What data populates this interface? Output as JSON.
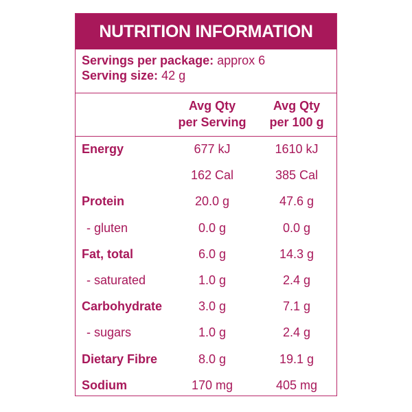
{
  "panel": {
    "title": "NUTRITION INFORMATION",
    "servings_label": "Servings per package:",
    "servings_value": "approx 6",
    "size_label": "Serving size:",
    "size_value": "42 g",
    "col1_line1": "Avg Qty",
    "col1_line2": "per Serving",
    "col2_line1": "Avg Qty",
    "col2_line2": "per 100 g",
    "rows": [
      {
        "name": "Energy",
        "per_serving": "677 kJ",
        "per_100g": "1610 kJ",
        "style": "bold"
      },
      {
        "name": "",
        "per_serving": "162 Cal",
        "per_100g": "385 Cal",
        "style": "bold"
      },
      {
        "name": "Protein",
        "per_serving": "20.0 g",
        "per_100g": "47.6 g",
        "style": "bold"
      },
      {
        "name": "- gluten",
        "per_serving": "0.0 g",
        "per_100g": "0.0 g",
        "style": "sub"
      },
      {
        "name": "Fat, total",
        "per_serving": "6.0 g",
        "per_100g": "14.3 g",
        "style": "bold"
      },
      {
        "name": "- saturated",
        "per_serving": "1.0 g",
        "per_100g": "2.4 g",
        "style": "sub"
      },
      {
        "name": "Carbohydrate",
        "per_serving": "3.0 g",
        "per_100g": "7.1 g",
        "style": "bold"
      },
      {
        "name": "- sugars",
        "per_serving": "1.0 g",
        "per_100g": "2.4 g",
        "style": "sub"
      },
      {
        "name": "Dietary Fibre",
        "per_serving": "8.0 g",
        "per_100g": "19.1 g",
        "style": "bold"
      },
      {
        "name": "Sodium",
        "per_serving": "170 mg",
        "per_100g": "405 mg",
        "style": "bold"
      }
    ]
  },
  "colors": {
    "brand": "#a8185a",
    "background": "#ffffff"
  }
}
